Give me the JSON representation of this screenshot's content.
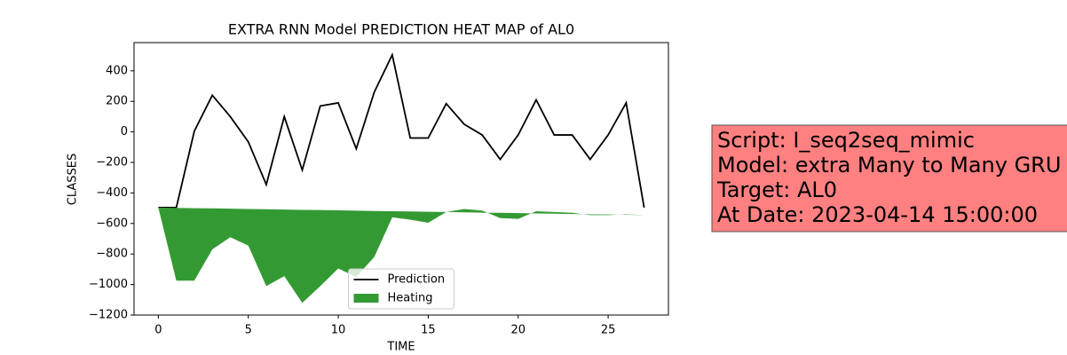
{
  "chart_data": {
    "type": "line-area",
    "title": "EXTRA RNN Model PREDICTION HEAT MAP of AL0",
    "xlabel": "TIME",
    "ylabel": "CLASSES",
    "x": [
      0,
      1,
      2,
      3,
      4,
      5,
      6,
      7,
      8,
      9,
      10,
      11,
      12,
      13,
      14,
      15,
      16,
      17,
      18,
      19,
      20,
      21,
      22,
      23,
      24,
      25,
      26,
      27
    ],
    "series": [
      {
        "name": "Prediction",
        "color": "#000000",
        "values": [
          -496,
          -496,
          5,
          240,
          100,
          -65,
          -345,
          100,
          -250,
          170,
          190,
          -110,
          260,
          505,
          -40,
          -40,
          185,
          50,
          -20,
          -180,
          -20,
          210,
          -20,
          -20,
          -180,
          -20,
          190,
          -496
        ]
      },
      {
        "name": "Heating",
        "color": "#339a33",
        "values": [
          -496,
          -975,
          -975,
          -770,
          -690,
          -745,
          -1010,
          -945,
          -1120,
          -1010,
          -895,
          -950,
          -820,
          -560,
          -575,
          -595,
          -525,
          -505,
          -515,
          -565,
          -570,
          -520,
          -525,
          -530,
          -545,
          -545,
          -540,
          -545
        ],
        "base": [
          -496,
          -498,
          -500,
          -501,
          -503,
          -505,
          -507,
          -509,
          -511,
          -512,
          -514,
          -516,
          -518,
          -520,
          -521,
          -523,
          -525,
          -527,
          -529,
          -530,
          -532,
          -534,
          -536,
          -538,
          -540,
          -541,
          -543,
          -545
        ]
      }
    ],
    "xlim": [
      -1.35,
      28.35
    ],
    "ylim": [
      -1200,
      585
    ],
    "xticks": [
      0,
      5,
      10,
      15,
      20,
      25
    ],
    "yticks": [
      {
        "value": -1200,
        "label": "−1200"
      },
      {
        "value": -1000,
        "label": "−1000"
      },
      {
        "value": -800,
        "label": "−800"
      },
      {
        "value": -600,
        "label": "−600"
      },
      {
        "value": -400,
        "label": "−400"
      },
      {
        "value": -200,
        "label": "−200"
      },
      0,
      200,
      400
    ],
    "legend": "lower center",
    "text_box": [
      "Script: I_seq2seq_mimic",
      "Model: extra Many to Many GRU",
      "Target: AL0",
      "At Date: 2023-04-14 15:00:00"
    ],
    "text_box_color": "#ff8080"
  }
}
